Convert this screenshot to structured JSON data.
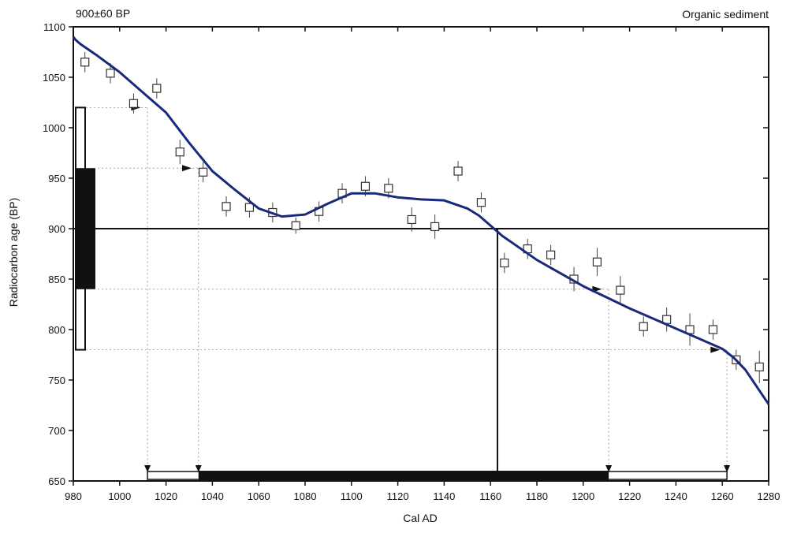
{
  "chart_data": {
    "type": "line",
    "title_left": "900±60 BP",
    "title_right": "Organic sediment",
    "xlabel": "Cal AD",
    "ylabel": "Radiocarbon age (BP)",
    "xlim": [
      980,
      1280
    ],
    "ylim": [
      650,
      1100
    ],
    "x_ticks": [
      980,
      1000,
      1020,
      1040,
      1060,
      1080,
      1100,
      1120,
      1140,
      1160,
      1180,
      1200,
      1220,
      1240,
      1260,
      1280
    ],
    "y_ticks": [
      650,
      700,
      750,
      800,
      850,
      900,
      950,
      1000,
      1050,
      1100
    ],
    "grid": false,
    "colors": {
      "curve": "#1a2a7a",
      "axes": "#111111",
      "fill": "#111111"
    },
    "calibration_curve": {
      "x": [
        980,
        981,
        983,
        990,
        1000,
        1010,
        1020,
        1030,
        1040,
        1050,
        1060,
        1070,
        1080,
        1090,
        1100,
        1110,
        1120,
        1130,
        1140,
        1150,
        1155,
        1160,
        1165,
        1170,
        1180,
        1190,
        1200,
        1210,
        1220,
        1230,
        1240,
        1250,
        1260,
        1265,
        1270,
        1280
      ],
      "y": [
        1090,
        1087,
        1083,
        1072,
        1055,
        1035,
        1015,
        985,
        957,
        938,
        920,
        912,
        914,
        925,
        935,
        935,
        931,
        929,
        928,
        920,
        913,
        903,
        893,
        885,
        869,
        856,
        843,
        832,
        821,
        811,
        801,
        791,
        781,
        772,
        760,
        726
      ]
    },
    "measurements": [
      {
        "x": 985,
        "y": 1065,
        "err": 10
      },
      {
        "x": 996,
        "y": 1054,
        "err": 10
      },
      {
        "x": 1006,
        "y": 1024,
        "err": 10
      },
      {
        "x": 1016,
        "y": 1039,
        "err": 10
      },
      {
        "x": 1026,
        "y": 976,
        "err": 12
      },
      {
        "x": 1036,
        "y": 956,
        "err": 10
      },
      {
        "x": 1046,
        "y": 922,
        "err": 10
      },
      {
        "x": 1056,
        "y": 921,
        "err": 10
      },
      {
        "x": 1066,
        "y": 916,
        "err": 10
      },
      {
        "x": 1076,
        "y": 903,
        "err": 8
      },
      {
        "x": 1086,
        "y": 917,
        "err": 10
      },
      {
        "x": 1096,
        "y": 935,
        "err": 10
      },
      {
        "x": 1106,
        "y": 942,
        "err": 10
      },
      {
        "x": 1116,
        "y": 940,
        "err": 10
      },
      {
        "x": 1126,
        "y": 909,
        "err": 12
      },
      {
        "x": 1136,
        "y": 902,
        "err": 12
      },
      {
        "x": 1146,
        "y": 957,
        "err": 10
      },
      {
        "x": 1156,
        "y": 926,
        "err": 10
      },
      {
        "x": 1166,
        "y": 866,
        "err": 10
      },
      {
        "x": 1176,
        "y": 880,
        "err": 10
      },
      {
        "x": 1186,
        "y": 874,
        "err": 10
      },
      {
        "x": 1196,
        "y": 850,
        "err": 12
      },
      {
        "x": 1206,
        "y": 867,
        "err": 14
      },
      {
        "x": 1216,
        "y": 839,
        "err": 14
      },
      {
        "x": 1226,
        "y": 803,
        "err": 10
      },
      {
        "x": 1236,
        "y": 810,
        "err": 12
      },
      {
        "x": 1246,
        "y": 800,
        "err": 16
      },
      {
        "x": 1256,
        "y": 800,
        "err": 10
      },
      {
        "x": 1266,
        "y": 770,
        "err": 10
      },
      {
        "x": 1276,
        "y": 763,
        "err": 16
      }
    ],
    "sample": {
      "age": 900,
      "sigma1": [
        840,
        960
      ],
      "sigma2": [
        780,
        1020
      ]
    },
    "calibrated_range": {
      "median": 1163,
      "sigma1": [
        1034,
        1211
      ],
      "sigma2": [
        1012,
        1262
      ],
      "dotted_markers": [
        {
          "x": 1034,
          "y": 960,
          "arrow_x": 1030
        },
        {
          "x": 1211,
          "y": 840,
          "arrow_x": 1207
        },
        {
          "x": 1262,
          "y": 780,
          "arrow_x": 1258
        },
        {
          "x": 1012,
          "y": 1020,
          "arrow_x": 1008
        }
      ]
    }
  }
}
